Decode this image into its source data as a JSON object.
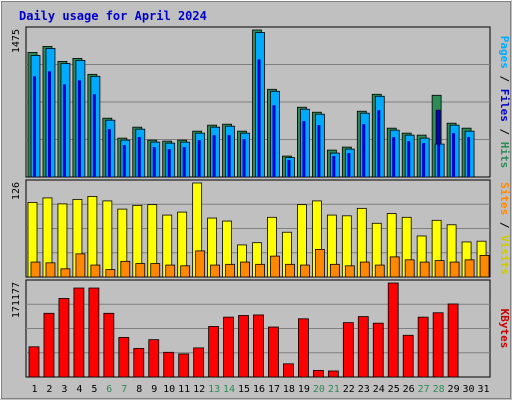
{
  "chart_data": [
    {
      "type": "bar",
      "title": "Daily usage for April 2024",
      "ymax_label": "1475",
      "ylim": [
        0,
        1475
      ],
      "ylabel_parts": [
        "Pages",
        "Files",
        "Hits"
      ],
      "ylabel_colors": [
        "#00aaff",
        "#0000cc",
        "#2e8b57"
      ],
      "categories": [
        "1",
        "2",
        "3",
        "4",
        "5",
        "6",
        "7",
        "8",
        "9",
        "10",
        "11",
        "12",
        "13",
        "14",
        "15",
        "16",
        "17",
        "18",
        "19",
        "20",
        "21",
        "22",
        "23",
        "24",
        "25",
        "26",
        "27",
        "28",
        "29",
        "30",
        "31"
      ],
      "weekend_days": [
        "6",
        "7",
        "13",
        "14",
        "20",
        "21",
        "27",
        "28"
      ],
      "series": [
        {
          "name": "Hits",
          "color": "#2e8b57",
          "values": [
            1250,
            1310,
            1160,
            1190,
            1030,
            590,
            390,
            500,
            370,
            360,
            370,
            460,
            520,
            530,
            460,
            1475,
            880,
            210,
            700,
            650,
            270,
            300,
            660,
            830,
            490,
            440,
            420,
            820,
            540,
            490,
            0
          ]
        },
        {
          "name": "Files",
          "color": "#0000cc",
          "values": [
            1010,
            1060,
            930,
            970,
            830,
            480,
            320,
            400,
            300,
            280,
            300,
            370,
            420,
            420,
            380,
            1180,
            720,
            170,
            560,
            520,
            210,
            240,
            530,
            670,
            400,
            360,
            340,
            670,
            440,
            400,
            0
          ]
        },
        {
          "name": "Pages",
          "color": "#00aaff",
          "values": [
            1220,
            1290,
            1140,
            1170,
            1010,
            570,
            370,
            480,
            350,
            340,
            350,
            440,
            500,
            510,
            440,
            1450,
            860,
            195,
            680,
            630,
            240,
            280,
            640,
            810,
            470,
            420,
            390,
            330,
            520,
            460,
            0
          ]
        }
      ]
    },
    {
      "type": "bar",
      "ymax_label": "126",
      "ylim": [
        0,
        126
      ],
      "ylabel_parts": [
        "Sites",
        "Visits"
      ],
      "ylabel_colors": [
        "#ff8800",
        "#cccc00"
      ],
      "categories": [
        "1",
        "2",
        "3",
        "4",
        "5",
        "6",
        "7",
        "8",
        "9",
        "10",
        "11",
        "12",
        "13",
        "14",
        "15",
        "16",
        "17",
        "18",
        "19",
        "20",
        "21",
        "22",
        "23",
        "24",
        "25",
        "26",
        "27",
        "28",
        "29",
        "30",
        "31"
      ],
      "series": [
        {
          "name": "Visits",
          "color": "#ffff00",
          "values": [
            100,
            106,
            98,
            104,
            108,
            102,
            91,
            96,
            97,
            83,
            87,
            126,
            79,
            75,
            43,
            46,
            80,
            60,
            97,
            102,
            83,
            82,
            92,
            72,
            85,
            80,
            55,
            76,
            70,
            47,
            48
          ]
        },
        {
          "name": "Sites",
          "color": "#ff8800",
          "values": [
            20,
            19,
            11,
            31,
            16,
            10,
            21,
            18,
            18,
            16,
            15,
            35,
            16,
            17,
            20,
            17,
            28,
            17,
            16,
            37,
            17,
            15,
            20,
            16,
            27,
            23,
            20,
            22,
            20,
            23,
            29
          ]
        }
      ]
    },
    {
      "type": "bar",
      "ymax_label": "171177",
      "ylim": [
        0,
        171177
      ],
      "ylabel_parts": [
        "KBytes"
      ],
      "ylabel_colors": [
        "#cc0000"
      ],
      "categories": [
        "1",
        "2",
        "3",
        "4",
        "5",
        "6",
        "7",
        "8",
        "9",
        "10",
        "11",
        "12",
        "13",
        "14",
        "15",
        "16",
        "17",
        "18",
        "19",
        "20",
        "21",
        "22",
        "23",
        "24",
        "25",
        "26",
        "27",
        "28",
        "29",
        "30",
        "31"
      ],
      "series": [
        {
          "name": "KBytes",
          "color": "#ff0000",
          "values": [
            55000,
            116000,
            143000,
            162000,
            162000,
            116000,
            72000,
            52000,
            68000,
            45000,
            42000,
            53000,
            92000,
            109000,
            112000,
            113000,
            91000,
            24000,
            106000,
            12000,
            11000,
            99000,
            110000,
            98000,
            171177,
            76000,
            109000,
            117000,
            133000,
            0,
            0
          ]
        }
      ]
    }
  ]
}
